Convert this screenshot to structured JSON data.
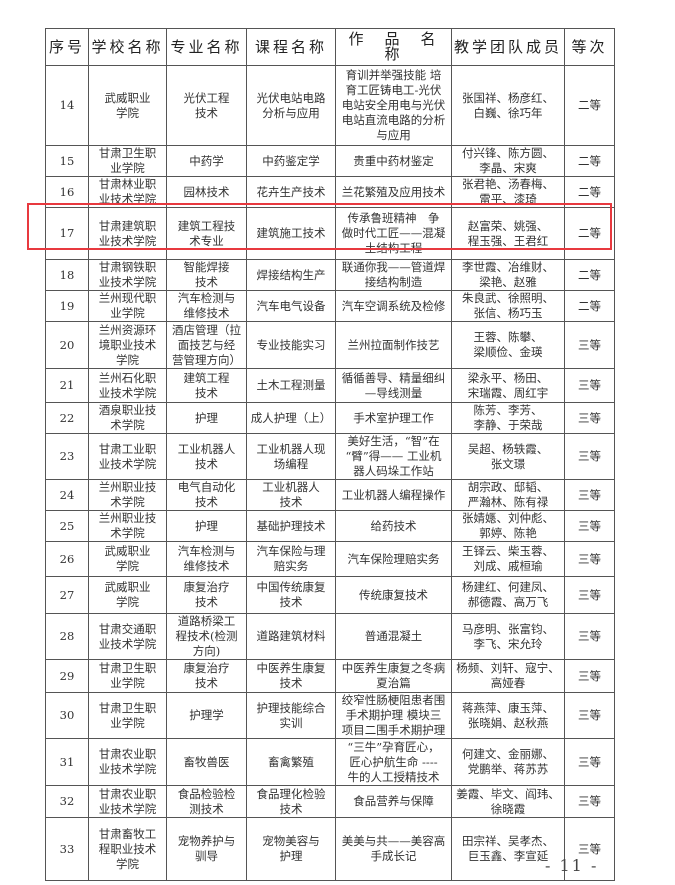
{
  "headers": [
    "序号",
    "学校名称",
    "专业名称",
    "课程名称",
    "作　品　名　称",
    "教学团队成员",
    "等次"
  ],
  "rows": [
    [
      "14",
      "武威职业\n学院",
      "光伏工程\n技术",
      "光伏电站电路\n分析与应用",
      "育训并举强技能 培\n育工匠铸电工-光伏\n电站安全用电与光伏\n电站直流电路的分析\n与应用",
      "张国祥、杨彦红、\n白巍、徐巧年",
      "二等"
    ],
    [
      "15",
      "甘肃卫生职\n业学院",
      "中药学",
      "中药鉴定学",
      "贵重中药材鉴定",
      "付兴锋、陈方圆、\n李晶、宋爽",
      "二等"
    ],
    [
      "16",
      "甘肃林业职\n业技术学院",
      "园林技术",
      "花卉生产技术",
      "兰花繁殖及应用技术",
      "张君艳、汤春梅、\n雷平、漆琦",
      "二等"
    ],
    [
      "17",
      "甘肃建筑职\n业技术学院",
      "建筑工程技\n术专业",
      "建筑施工技术",
      "传承鲁班精神　争\n做时代工匠——混凝\n土结构工程",
      "赵富荣、姚强、\n程玉强、王君红",
      "二等"
    ],
    [
      "18",
      "甘肃钢铁职\n业技术学院",
      "智能焊接\n技术",
      "焊接结构生产",
      "联通你我——管道焊\n接结构制造",
      "李世霞、冶维财、\n梁艳、赵雅",
      "二等"
    ],
    [
      "19",
      "兰州现代职\n业学院",
      "汽车检测与\n维修技术",
      "汽车电气设备",
      "汽车空调系统及检修",
      "朱良武、徐照明、\n张信、杨巧玉",
      "二等"
    ],
    [
      "20",
      "兰州资源环\n境职业技术\n学院",
      "酒店管理（拉\n面技艺与经\n营管理方向）",
      "专业技能实习",
      "兰州拉面制作技艺",
      "王蓉、陈攀、\n梁顺俭、金瑛",
      "三等"
    ],
    [
      "21",
      "兰州石化职\n业技术学院",
      "建筑工程\n技术",
      "土木工程测量",
      "循循善导、精量细纠\n—导线测量",
      "梁永平、杨田、\n宋瑞霞、周红宇",
      "三等"
    ],
    [
      "22",
      "酒泉职业技\n术学院",
      "护理",
      "成人护理（上）",
      "手术室护理工作",
      "陈芳、李芳、\n李静、于荣哉",
      "三等"
    ],
    [
      "23",
      "甘肃工业职\n业技术学院",
      "工业机器人\n技术",
      "工业机器人现\n场编程",
      "美好生活，“智”在\n“臂”得—— 工业机\n器人码垛工作站",
      "吴超、杨轶霞、\n张文璟",
      "三等"
    ],
    [
      "24",
      "兰州职业技\n术学院",
      "电气自动化\n技术",
      "工业机器人\n技术",
      "工业机器人编程操作",
      "胡宗政、邸韬、\n严瀚林、陈有禄",
      "三等"
    ],
    [
      "25",
      "兰州职业技\n术学院",
      "护理",
      "基础护理技术",
      "给药技术",
      "张婧嫕、刘仲彪、\n郭婷、陈艳",
      "三等"
    ],
    [
      "26",
      "武威职业\n学院",
      "汽车检测与\n维修技术",
      "汽车保险与理\n赔实务",
      "汽车保险理赔实务",
      "王铎云、柴玉蓉、\n刘成、戚桓瑜",
      "三等"
    ],
    [
      "27",
      "武威职业\n学院",
      "康复治疗\n技术",
      "中国传统康复\n技术",
      "传统康复技术",
      "杨建红、何建凤、\n郝德霞、高万飞",
      "三等"
    ],
    [
      "28",
      "甘肃交通职\n业技术学院",
      "道路桥梁工\n程技术(检测\n方向)",
      "道路建筑材料",
      "普通混凝土",
      "马彦明、张富钧、\n李飞、宋允玲",
      "三等"
    ],
    [
      "29",
      "甘肃卫生职\n业学院",
      "康复治疗\n技术",
      "中医养生康复\n技术",
      "中医养生康复之冬病\n夏治篇",
      "杨频、刘轩、寇宁、\n高娅春",
      "三等"
    ],
    [
      "30",
      "甘肃卫生职\n业学院",
      "护理学",
      "护理技能综合\n实训",
      "绞窄性肠梗阻患者围\n手术期护理 模块三\n项目二围手术期护理",
      "蒋燕萍、康玉萍、\n张晓娟、赵秋燕",
      "三等"
    ],
    [
      "31",
      "甘肃农业职\n业技术学院",
      "畜牧兽医",
      "畜禽繁殖",
      "“三牛”孕育匠心，\n匠心护航生命 ----\n牛的人工授精技术",
      "何建文、金丽娜、\n党鹏举、蒋苏苏",
      "三等"
    ],
    [
      "32",
      "甘肃农业职\n业技术学院",
      "食品检验检\n测技术",
      "食品理化检验\n技术",
      "食品营养与保障",
      "姜霞、毕文、阎玮、\n徐晓霞",
      "三等"
    ],
    [
      "33",
      "甘肃畜牧工\n程职业技术\n学院",
      "宠物养护与\n驯导",
      "宠物美容与\n护理",
      "美美与共——美容高\n手成长记",
      "田宗祥、吴孝杰、\n巨玉鑫、李宣延",
      "三等"
    ]
  ],
  "highlight_color": "#e8393f",
  "page_number": "- 11 -"
}
